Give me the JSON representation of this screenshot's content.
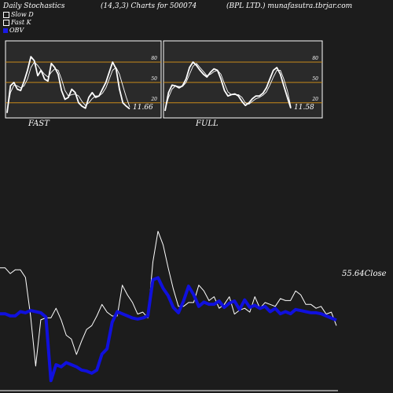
{
  "header": {
    "left": "Daily Stochastics",
    "center": "(14,3,3) Charts for 500074",
    "right": "(BPL LTD.) munafasutra.tbrjar.com"
  },
  "legend": [
    {
      "label": "Slow  D",
      "color": "#ffffff"
    },
    {
      "label": "Fast K",
      "color": "#ffffff"
    },
    {
      "label": "OBV",
      "color": "#1a1ae6"
    }
  ],
  "colors": {
    "background": "#1c1c1c",
    "panel": "#2a2a2a",
    "level_line": "#c88a1a",
    "price": "#ffffff",
    "obv": "#1010dd"
  },
  "chart_data": [
    {
      "type": "line",
      "title": "FAST",
      "ylim": [
        0,
        100
      ],
      "yticks": [
        20,
        50,
        80
      ],
      "levels": [
        20,
        50,
        80
      ],
      "last_value_label": "11.66",
      "series": [
        {
          "name": "Fast K",
          "values": [
            5,
            45,
            50,
            40,
            38,
            52,
            68,
            88,
            82,
            60,
            68,
            55,
            52,
            78,
            72,
            62,
            38,
            25,
            28,
            40,
            35,
            20,
            15,
            12,
            28,
            35,
            28,
            30,
            40,
            50,
            65,
            80,
            70,
            40,
            20,
            15,
            11
          ]
        },
        {
          "name": "Slow  D",
          "values": [
            8,
            35,
            46,
            45,
            42,
            45,
            55,
            72,
            80,
            75,
            68,
            62,
            58,
            65,
            70,
            68,
            55,
            38,
            30,
            32,
            33,
            30,
            22,
            16,
            20,
            26,
            30,
            30,
            34,
            42,
            55,
            68,
            72,
            62,
            45,
            28,
            14
          ]
        }
      ]
    },
    {
      "type": "line",
      "title": "FULL",
      "ylim": [
        0,
        100
      ],
      "yticks": [
        20,
        50,
        80
      ],
      "levels": [
        20,
        50,
        80
      ],
      "last_value_label": "11.58",
      "series": [
        {
          "name": "Fast K",
          "values": [
            8,
            35,
            46,
            45,
            42,
            45,
            55,
            72,
            80,
            75,
            68,
            62,
            58,
            65,
            70,
            68,
            55,
            38,
            30,
            32,
            33,
            30,
            22,
            16,
            20,
            26,
            30,
            30,
            34,
            42,
            55,
            68,
            72,
            62,
            45,
            28,
            12
          ]
        },
        {
          "name": "Slow  D",
          "values": [
            10,
            28,
            40,
            45,
            44,
            44,
            50,
            62,
            74,
            78,
            72,
            66,
            60,
            62,
            66,
            68,
            62,
            48,
            36,
            32,
            32,
            32,
            28,
            20,
            18,
            22,
            26,
            28,
            31,
            36,
            46,
            58,
            68,
            68,
            55,
            38,
            14
          ]
        }
      ]
    },
    {
      "type": "line",
      "title": "",
      "last_value_label": "55.64Close",
      "series": [
        {
          "name": "Close",
          "values": [
            65,
            65,
            62,
            64,
            64,
            60,
            40,
            14,
            38,
            39,
            39,
            44,
            38,
            30,
            28,
            20,
            27,
            33,
            35,
            40,
            46,
            42,
            40,
            40,
            56,
            51,
            47,
            41,
            42,
            39,
            68,
            84,
            77,
            65,
            54,
            45,
            45,
            47,
            47,
            56,
            53,
            48,
            50,
            44,
            46,
            50,
            41,
            43,
            44,
            42,
            50,
            44,
            47,
            46,
            45,
            49,
            48,
            48,
            53,
            51,
            46,
            46,
            44,
            45,
            41,
            42,
            35
          ]
        },
        {
          "name": "OBV",
          "values": [
            8,
            8,
            6,
            6,
            10,
            9,
            11,
            10,
            9,
            5,
            -55,
            -40,
            -42,
            -38,
            -40,
            -42,
            -45,
            -46,
            -48,
            -45,
            -30,
            -25,
            0,
            10,
            8,
            6,
            4,
            3,
            4,
            6,
            40,
            42,
            32,
            25,
            14,
            9,
            20,
            34,
            26,
            15,
            19,
            17,
            17,
            20,
            14,
            18,
            20,
            12,
            21,
            14,
            16,
            13,
            15,
            10,
            13,
            8,
            10,
            8,
            12,
            11,
            10,
            9,
            9,
            8,
            6,
            4,
            2
          ]
        }
      ]
    }
  ]
}
